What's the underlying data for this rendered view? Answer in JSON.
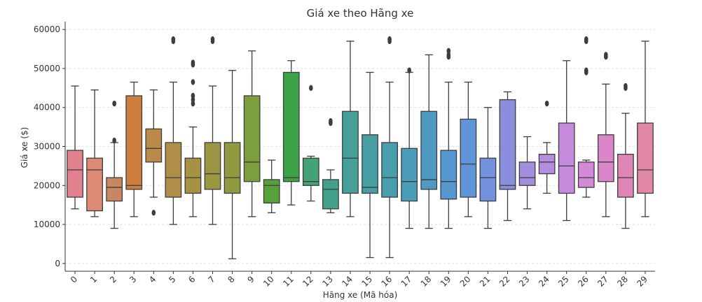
{
  "chart_data": {
    "type": "box",
    "title": "Giá xe theo Hãng xe",
    "xlabel": "Hãng xe (Mã hóa)",
    "ylabel": "Giá xe ($)",
    "ylim": [
      -2000,
      62000
    ],
    "yticks": [
      0,
      10000,
      20000,
      30000,
      40000,
      50000,
      60000
    ],
    "ytick_labels": [
      "0",
      "10000",
      "20000",
      "30000",
      "40000",
      "50000",
      "60000"
    ],
    "grid": "horizontal dashed",
    "categories": [
      "0",
      "1",
      "2",
      "3",
      "4",
      "5",
      "6",
      "7",
      "8",
      "9",
      "10",
      "11",
      "12",
      "13",
      "14",
      "15",
      "16",
      "17",
      "18",
      "19",
      "20",
      "21",
      "22",
      "23",
      "24",
      "25",
      "26",
      "27",
      "28",
      "29"
    ],
    "boxes": [
      {
        "min": 14000,
        "q1": 17000,
        "median": 24000,
        "q3": 29000,
        "max": 45500,
        "outliers": [],
        "color": "#e1808e"
      },
      {
        "min": 12000,
        "q1": 13500,
        "median": 24000,
        "q3": 27000,
        "max": 44500,
        "outliers": [],
        "color": "#dc8a73"
      },
      {
        "min": 9000,
        "q1": 16000,
        "median": 19500,
        "q3": 22000,
        "max": 31000,
        "outliers": [
          31500,
          41000
        ],
        "color": "#c9875f"
      },
      {
        "min": 12000,
        "q1": 19000,
        "median": 20000,
        "q3": 43000,
        "max": 46500,
        "outliers": [],
        "color": "#cd7f3e"
      },
      {
        "min": 17000,
        "q1": 26000,
        "median": 29500,
        "q3": 34500,
        "max": 44500,
        "outliers": [
          13000
        ],
        "color": "#ba8a4b"
      },
      {
        "min": 10000,
        "q1": 17000,
        "median": 22000,
        "q3": 31000,
        "max": 46500,
        "outliers": [
          57000,
          57500
        ],
        "color": "#b18e48"
      },
      {
        "min": 12000,
        "q1": 18000,
        "median": 22000,
        "q3": 27000,
        "max": 35000,
        "outliers": [
          41000,
          42000,
          43000,
          46500,
          51000,
          51500
        ],
        "color": "#a59243"
      },
      {
        "min": 10000,
        "q1": 19000,
        "median": 23000,
        "q3": 31000,
        "max": 45500,
        "outliers": [
          57000,
          57500
        ],
        "color": "#9a9643"
      },
      {
        "min": 1200,
        "q1": 18000,
        "median": 22000,
        "q3": 31000,
        "max": 49500,
        "outliers": [],
        "color": "#909a41"
      },
      {
        "min": 12000,
        "q1": 21000,
        "median": 26000,
        "q3": 43000,
        "max": 54500,
        "outliers": [],
        "color": "#7c9e3c"
      },
      {
        "min": 13000,
        "q1": 15500,
        "median": 20000,
        "q3": 21500,
        "max": 26500,
        "outliers": [],
        "color": "#57a13a"
      },
      {
        "min": 15000,
        "q1": 21000,
        "median": 22000,
        "q3": 49000,
        "max": 52000,
        "outliers": [],
        "color": "#3ea247"
      },
      {
        "min": 16000,
        "q1": 20000,
        "median": 21000,
        "q3": 27000,
        "max": 27500,
        "outliers": [
          45000
        ],
        "color": "#44a277"
      },
      {
        "min": 13000,
        "q1": 14000,
        "median": 19000,
        "q3": 21500,
        "max": 24000,
        "outliers": [
          36000,
          36500
        ],
        "color": "#43a18b"
      },
      {
        "min": 12000,
        "q1": 18000,
        "median": 27000,
        "q3": 39000,
        "max": 57000,
        "outliers": [],
        "color": "#45a099"
      },
      {
        "min": 1500,
        "q1": 18000,
        "median": 19500,
        "q3": 33000,
        "max": 49000,
        "outliers": [],
        "color": "#479fa3"
      },
      {
        "min": 1500,
        "q1": 17000,
        "median": 22000,
        "q3": 31000,
        "max": 46500,
        "outliers": [
          57000,
          57500
        ],
        "color": "#499eac"
      },
      {
        "min": 9000,
        "q1": 16000,
        "median": 21000,
        "q3": 29500,
        "max": 49000,
        "outliers": [
          49500
        ],
        "color": "#4b9db7"
      },
      {
        "min": 9000,
        "q1": 19000,
        "median": 21500,
        "q3": 39000,
        "max": 53500,
        "outliers": [],
        "color": "#4f9ac3"
      },
      {
        "min": 9000,
        "q1": 16500,
        "median": 21000,
        "q3": 29000,
        "max": 46500,
        "outliers": [
          53000,
          53500,
          54500
        ],
        "color": "#5597cf"
      },
      {
        "min": 12000,
        "q1": 17000,
        "median": 25500,
        "q3": 37000,
        "max": 46500,
        "outliers": [],
        "color": "#6094d8"
      },
      {
        "min": 9000,
        "q1": 16000,
        "median": 22000,
        "q3": 27000,
        "max": 40000,
        "outliers": [],
        "color": "#7391dc"
      },
      {
        "min": 11000,
        "q1": 19000,
        "median": 20000,
        "q3": 42000,
        "max": 44000,
        "outliers": [],
        "color": "#8a8fdc"
      },
      {
        "min": 14000,
        "q1": 20000,
        "median": 22000,
        "q3": 26000,
        "max": 32500,
        "outliers": [],
        "color": "#a28edd"
      },
      {
        "min": 18000,
        "q1": 23000,
        "median": 26000,
        "q3": 28000,
        "max": 31000,
        "outliers": [
          41000
        ],
        "color": "#b58ddd"
      },
      {
        "min": 11000,
        "q1": 18000,
        "median": 25000,
        "q3": 36000,
        "max": 52000,
        "outliers": [],
        "color": "#c78bdd"
      },
      {
        "min": 17000,
        "q1": 19500,
        "median": 22000,
        "q3": 26000,
        "max": 26500,
        "outliers": [
          49000,
          49500,
          57000,
          57500
        ],
        "color": "#d488d8"
      },
      {
        "min": 12000,
        "q1": 21000,
        "median": 26000,
        "q3": 33000,
        "max": 46000,
        "outliers": [
          53000,
          53500
        ],
        "color": "#db86c9"
      },
      {
        "min": 9000,
        "q1": 17000,
        "median": 22000,
        "q3": 28000,
        "max": 38500,
        "outliers": [
          45000,
          45500
        ],
        "color": "#df86b7"
      },
      {
        "min": 12000,
        "q1": 18000,
        "median": 24000,
        "q3": 36000,
        "max": 57000,
        "outliers": [],
        "color": "#e088a5"
      }
    ]
  }
}
